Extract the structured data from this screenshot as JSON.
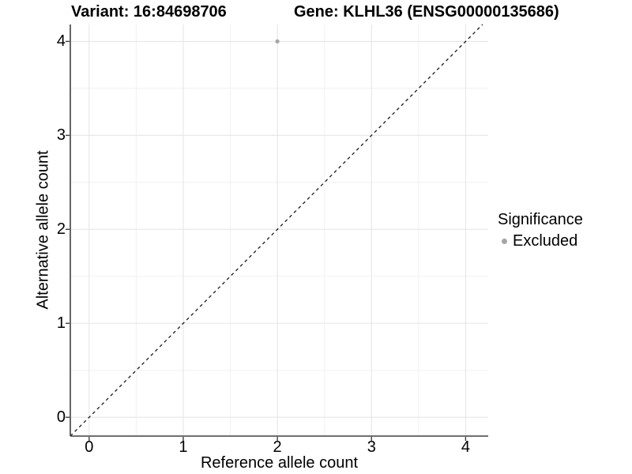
{
  "chart_data": {
    "type": "scatter",
    "title_left": "Variant: 16:84698706",
    "title_right": "Gene: KLHL36 (ENSG00000135686)",
    "xlabel": "Reference allele count",
    "ylabel": "Alternative allele count",
    "xlim": [
      -0.2,
      4.24
    ],
    "ylim": [
      -0.2,
      4.18
    ],
    "xticks": [
      0,
      1,
      2,
      3,
      4
    ],
    "yticks": [
      0,
      1,
      2,
      3,
      4
    ],
    "grid": {
      "major": true,
      "minor": true
    },
    "legend_position": "right",
    "series": [
      {
        "name": "Excluded",
        "color": "#a5a5a5",
        "points": [
          {
            "x": 2,
            "y": 4
          }
        ]
      }
    ],
    "reference_line": {
      "kind": "abline",
      "slope": 1,
      "intercept": 0,
      "linetype": "dashed",
      "color": "#1a1a1a"
    }
  },
  "legend": {
    "title": "Significance",
    "items": [
      {
        "label": "Excluded",
        "swatch_color": "#a5a5a5"
      }
    ]
  },
  "colors": {
    "background": "#ffffff",
    "grid_major": "#e6e6e6",
    "grid_minor": "#f1f1f1",
    "axis_line": "#404040",
    "tick_mark": "#404040",
    "text": "#000000"
  }
}
